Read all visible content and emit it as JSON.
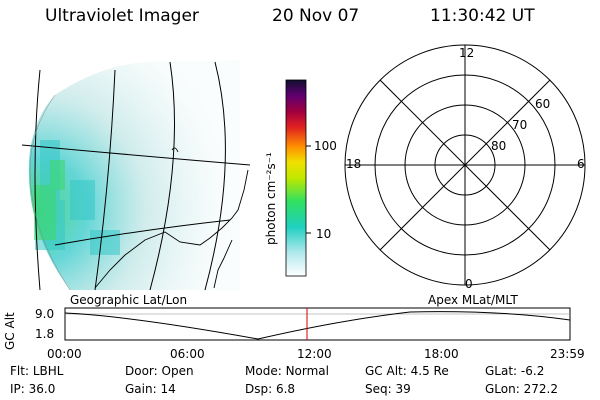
{
  "header": {
    "instrument": "Ultraviolet Imager",
    "date": "20 Nov 07",
    "time": "11:30:42 UT"
  },
  "colorbar": {
    "unit_label": "photon cm⁻²s⁻¹",
    "ticks": [
      "100",
      "10"
    ]
  },
  "polar_plot": {
    "mlt_labels": {
      "top": "12",
      "left": "18",
      "right": "6",
      "bottom": "0"
    },
    "lat_labels": [
      "60",
      "70",
      "80"
    ]
  },
  "timeline": {
    "axis_label": "GC Alt",
    "y_ticks": [
      "9.0",
      "1.8"
    ],
    "left_caption": "Geographic Lat/Lon",
    "right_caption": "Apex MLat/MLT",
    "x_ticks": [
      "00:00",
      "06:00",
      "12:00",
      "18:00",
      "23:59"
    ],
    "current_time_fraction": 0.4792
  },
  "status": {
    "filter": {
      "label": "Flt:",
      "value": "LBHL"
    },
    "ip": {
      "label": "IP:",
      "value": "36.0"
    },
    "door": {
      "label": "Door:",
      "value": "Open"
    },
    "gain": {
      "label": "Gain:",
      "value": "14"
    },
    "mode": {
      "label": "Mode:",
      "value": "Normal"
    },
    "dsp": {
      "label": "Dsp:",
      "value": "6.8"
    },
    "gc_alt": {
      "label": "GC Alt:",
      "value": "4.5 Re"
    },
    "seq": {
      "label": "Seq:",
      "value": "39"
    },
    "glat": {
      "label": "GLat:",
      "value": "-6.2"
    },
    "glon": {
      "label": "GLon:",
      "value": "272.2"
    }
  },
  "colors": {
    "marker": "#d00000",
    "map_lines": "#000000"
  }
}
